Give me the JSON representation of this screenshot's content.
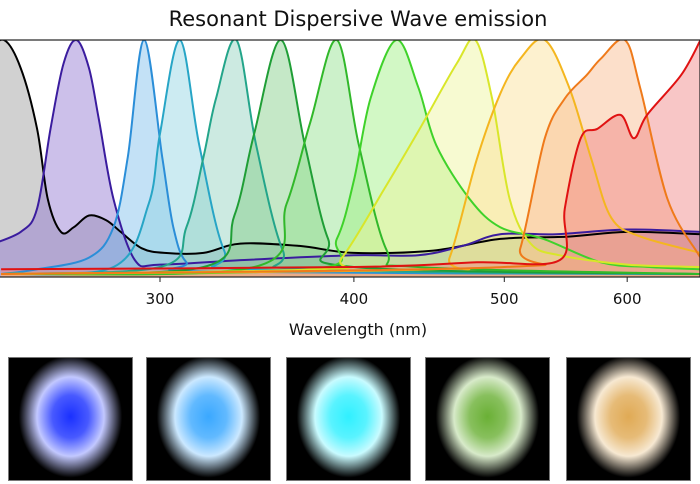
{
  "chart_data": {
    "type": "area",
    "title": "Resonant Dispersive Wave emission",
    "xlabel": "Wavelength (nm)",
    "ylabel": "",
    "x_scale": "log",
    "xlim": [
      237,
      669
    ],
    "ylim": [
      0,
      1
    ],
    "xticks": [
      300,
      400,
      500,
      600
    ],
    "grid": false,
    "legend": "none",
    "series": [
      {
        "color": "#000000",
        "fill": "#9a9a9a",
        "points": [
          [
            232,
            0.95
          ],
          [
            238,
            1.0
          ],
          [
            244,
            0.88
          ],
          [
            250,
            0.62
          ],
          [
            254,
            0.32
          ],
          [
            259,
            0.18
          ],
          [
            264,
            0.2
          ],
          [
            270,
            0.25
          ],
          [
            277,
            0.23
          ],
          [
            283,
            0.18
          ],
          [
            292,
            0.11
          ],
          [
            302,
            0.09
          ],
          [
            320,
            0.09
          ],
          [
            338,
            0.13
          ],
          [
            369,
            0.12
          ],
          [
            400,
            0.09
          ],
          [
            450,
            0.1
          ],
          [
            497,
            0.15
          ],
          [
            550,
            0.16
          ],
          [
            600,
            0.18
          ],
          [
            669,
            0.17
          ]
        ]
      },
      {
        "color": "#3a1c9e",
        "fill": "#8f74d0",
        "points": [
          [
            232,
            0.12
          ],
          [
            244,
            0.18
          ],
          [
            250,
            0.28
          ],
          [
            255,
            0.62
          ],
          [
            260,
            0.9
          ],
          [
            265,
            1.0
          ],
          [
            270,
            0.88
          ],
          [
            274,
            0.66
          ],
          [
            280,
            0.32
          ],
          [
            289,
            0.06
          ],
          [
            300,
            0.04
          ],
          [
            340,
            0.06
          ],
          [
            400,
            0.08
          ],
          [
            440,
            0.08
          ],
          [
            470,
            0.12
          ],
          [
            497,
            0.17
          ],
          [
            540,
            0.17
          ],
          [
            600,
            0.19
          ],
          [
            669,
            0.18
          ]
        ]
      },
      {
        "color": "#2b8ed8",
        "fill": "#7bbcec",
        "points": [
          [
            237,
            0.0
          ],
          [
            250,
            0.02
          ],
          [
            270,
            0.07
          ],
          [
            280,
            0.2
          ],
          [
            286,
            0.5
          ],
          [
            293,
            1.0
          ],
          [
            301,
            0.5
          ],
          [
            306,
            0.2
          ],
          [
            312,
            0.05
          ],
          [
            325,
            0.01
          ],
          [
            669,
            0.0
          ]
        ]
      },
      {
        "color": "#27a5c6",
        "fill": "#8fd3e2",
        "points": [
          [
            237,
            0.0
          ],
          [
            280,
            0.03
          ],
          [
            295,
            0.3
          ],
          [
            300,
            0.6
          ],
          [
            309,
            1.0
          ],
          [
            318,
            0.55
          ],
          [
            330,
            0.1
          ],
          [
            345,
            0.02
          ],
          [
            669,
            0.0
          ]
        ]
      },
      {
        "color": "#23a58a",
        "fill": "#8fd1bd",
        "points": [
          [
            237,
            0.0
          ],
          [
            300,
            0.03
          ],
          [
            312,
            0.2
          ],
          [
            320,
            0.5
          ],
          [
            326,
            0.75
          ],
          [
            336,
            1.0
          ],
          [
            346,
            0.55
          ],
          [
            360,
            0.1
          ],
          [
            375,
            0.02
          ],
          [
            669,
            0.0
          ]
        ]
      },
      {
        "color": "#1f9e36",
        "fill": "#7fcc82",
        "points": [
          [
            237,
            0.0
          ],
          [
            320,
            0.03
          ],
          [
            335,
            0.25
          ],
          [
            345,
            0.6
          ],
          [
            359,
            1.0
          ],
          [
            372,
            0.55
          ],
          [
            385,
            0.15
          ],
          [
            400,
            0.03
          ],
          [
            669,
            0.0
          ]
        ]
      },
      {
        "color": "#31b82a",
        "fill": "#8fe08a",
        "points": [
          [
            237,
            0.0
          ],
          [
            345,
            0.03
          ],
          [
            362,
            0.3
          ],
          [
            375,
            0.65
          ],
          [
            390,
            1.0
          ],
          [
            403,
            0.55
          ],
          [
            420,
            0.1
          ],
          [
            440,
            0.03
          ],
          [
            669,
            0.0
          ]
        ]
      },
      {
        "color": "#3fd22a",
        "fill": "#9cf07e",
        "points": [
          [
            237,
            0.0
          ],
          [
            375,
            0.02
          ],
          [
            390,
            0.15
          ],
          [
            400,
            0.4
          ],
          [
            410,
            0.75
          ],
          [
            426,
            1.0
          ],
          [
            440,
            0.8
          ],
          [
            452,
            0.55
          ],
          [
            475,
            0.32
          ],
          [
            497,
            0.2
          ],
          [
            530,
            0.15
          ],
          [
            577,
            0.05
          ],
          [
            620,
            0.03
          ],
          [
            669,
            0.02
          ]
        ]
      },
      {
        "color": "#d9e62a",
        "fill": "#eef59a",
        "points": [
          [
            237,
            0.0
          ],
          [
            380,
            0.02
          ],
          [
            393,
            0.07
          ],
          [
            419,
            0.37
          ],
          [
            441,
            0.62
          ],
          [
            466,
            0.9
          ],
          [
            479,
            1.0
          ],
          [
            491,
            0.75
          ],
          [
            504,
            0.32
          ],
          [
            520,
            0.13
          ],
          [
            543,
            0.08
          ],
          [
            600,
            0.04
          ],
          [
            669,
            0.03
          ]
        ]
      },
      {
        "color": "#f4b61f",
        "fill": "#fbdf94",
        "points": [
          [
            237,
            0.0
          ],
          [
            450,
            0.02
          ],
          [
            461,
            0.07
          ],
          [
            480,
            0.49
          ],
          [
            497,
            0.77
          ],
          [
            512,
            0.92
          ],
          [
            531,
            1.0
          ],
          [
            551,
            0.79
          ],
          [
            569,
            0.49
          ],
          [
            586,
            0.24
          ],
          [
            612,
            0.16
          ],
          [
            669,
            0.09
          ]
        ]
      },
      {
        "color": "#ef7a1a",
        "fill": "#f8b98a",
        "points": [
          [
            237,
            0.0
          ],
          [
            500,
            0.03
          ],
          [
            512,
            0.11
          ],
          [
            531,
            0.58
          ],
          [
            547,
            0.75
          ],
          [
            565,
            0.85
          ],
          [
            577,
            0.92
          ],
          [
            598,
            1.0
          ],
          [
            612,
            0.79
          ],
          [
            637,
            0.32
          ],
          [
            666,
            0.09
          ],
          [
            669,
            0.08
          ]
        ]
      },
      {
        "color": "#e01212",
        "fill": "#f08080",
        "points": [
          [
            237,
            0.02
          ],
          [
            400,
            0.03
          ],
          [
            480,
            0.05
          ],
          [
            543,
            0.06
          ],
          [
            547,
            0.28
          ],
          [
            560,
            0.58
          ],
          [
            574,
            0.62
          ],
          [
            594,
            0.68
          ],
          [
            606,
            0.58
          ],
          [
            618,
            0.68
          ],
          [
            650,
            0.85
          ],
          [
            669,
            1.0
          ]
        ]
      }
    ]
  },
  "images": [
    {
      "color": "#1a30ff"
    },
    {
      "color": "#3aa8ff"
    },
    {
      "color": "#30f0ff"
    },
    {
      "color": "#6ab035"
    },
    {
      "color": "#e0aa55"
    }
  ]
}
